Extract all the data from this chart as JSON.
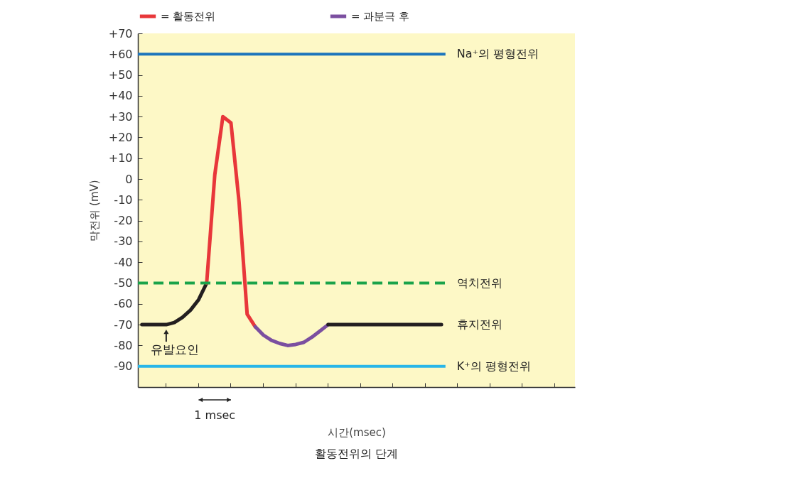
{
  "chart_data": {
    "type": "line",
    "title": "활동전위의 단계",
    "xlabel": "시간(msec)",
    "ylabel": "막전위 (mV)",
    "categories": [
      null,
      null,
      null,
      null,
      null,
      null,
      null,
      null,
      null,
      null,
      null,
      null,
      null,
      null,
      null,
      null,
      null,
      null,
      null,
      null,
      null,
      null,
      null,
      null,
      null,
      null,
      null,
      null,
      null,
      null,
      null,
      null,
      null,
      null,
      null,
      null,
      null,
      null
    ],
    "ylim": [
      -100,
      70
    ],
    "yticks": [
      -90,
      -80,
      -70,
      -60,
      -50,
      -40,
      -30,
      -20,
      -10,
      0,
      {
        "value": 10,
        "label": "+10"
      },
      {
        "value": 20,
        "label": "+20"
      },
      {
        "value": 30,
        "label": "+30"
      },
      {
        "value": 40,
        "label": "+40"
      },
      {
        "value": 50,
        "label": "+50"
      },
      {
        "value": 60,
        "label": "+60"
      },
      {
        "value": 70,
        "label": "+70"
      }
    ],
    "tick_labels": "y",
    "grid": false,
    "legend": "top",
    "line_style": "solid",
    "series": [
      {
        "color": "#231f20",
        "values": [
          -70,
          -70,
          -70,
          -70,
          -69,
          -66.5,
          -63,
          -58,
          -50,
          null,
          null,
          null,
          null,
          null,
          null,
          null,
          null,
          null,
          null,
          null,
          null,
          null,
          null,
          null,
          null,
          null,
          null,
          null,
          null,
          null,
          null,
          null,
          null,
          null,
          null,
          null,
          null,
          null
        ]
      },
      {
        "name": "= 활동전위",
        "color": "#e8373a",
        "values": [
          null,
          null,
          null,
          null,
          null,
          null,
          null,
          null,
          -50,
          2,
          30,
          27,
          -11,
          -65,
          -71,
          null,
          null,
          null,
          null,
          null,
          null,
          null,
          null,
          null,
          null,
          null,
          null,
          null,
          null,
          null,
          null,
          null,
          null,
          null,
          null,
          null,
          null,
          null
        ]
      },
      {
        "name": "= 과분극 후",
        "color": "#7b4fa0",
        "values": [
          null,
          null,
          null,
          null,
          null,
          null,
          null,
          null,
          null,
          null,
          null,
          null,
          null,
          null,
          -71,
          -75,
          -77.5,
          -79,
          -80,
          -79.5,
          -78.5,
          -76,
          -73,
          -70,
          null,
          null,
          null,
          null,
          null,
          null,
          null,
          null,
          null,
          null,
          null,
          null,
          null,
          null
        ]
      },
      {
        "color": "#231f20",
        "values": [
          null,
          null,
          null,
          null,
          null,
          null,
          null,
          null,
          null,
          null,
          null,
          null,
          null,
          null,
          null,
          null,
          null,
          null,
          null,
          null,
          null,
          null,
          null,
          -70,
          -70,
          -70,
          -70,
          -70,
          -70,
          -70,
          -70,
          -70,
          -70,
          -70,
          -70,
          -70,
          -70,
          -70
        ]
      }
    ],
    "ref_lines": [
      {
        "axis": "y",
        "value": 60,
        "label": "Na⁺의 평형전위",
        "color": "#1c75bc",
        "line_style": "solid"
      },
      {
        "axis": "y",
        "value": -50,
        "label": "역치전위",
        "color": "#1aa34a",
        "line_style": "dashed"
      },
      {
        "axis": "y",
        "value": -90,
        "label": "K⁺의 평형전위",
        "color": "#29b6e8",
        "line_style": "solid"
      }
    ],
    "annotations": [
      "1 msec",
      "유발요인",
      "휴지전위"
    ]
  }
}
